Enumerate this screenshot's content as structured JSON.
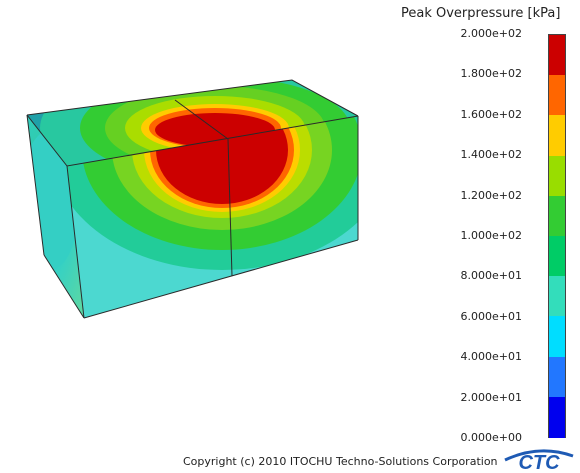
{
  "legend": {
    "title": "Peak Overpressure [kPa]",
    "ticks": [
      "2.000e+02",
      "1.800e+02",
      "1.600e+02",
      "1.400e+02",
      "1.200e+02",
      "1.000e+02",
      "8.000e+01",
      "6.000e+01",
      "4.000e+01",
      "2.000e+01",
      "0.000e+00"
    ],
    "colors": [
      "#cc0000",
      "#ff6600",
      "#ffcc00",
      "#99dd00",
      "#33cc33",
      "#00cc66",
      "#33ddbb",
      "#00ddff",
      "#2277ff",
      "#0000ee"
    ]
  },
  "footer": {
    "copyright": "Copyright (c) 2010 ITOCHU Techno-Solutions Corporation",
    "logo_text": "CTC"
  }
}
